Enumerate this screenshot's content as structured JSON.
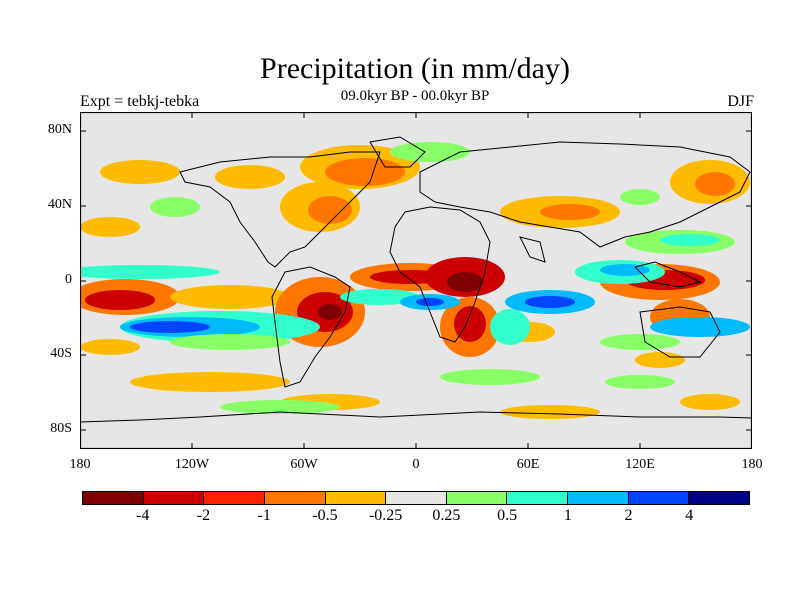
{
  "title": "Precipitation (in mm/day)",
  "subtitle": "09.0kyr BP - 00.0kyr BP",
  "experiment_label": "Expt = tebkj-tebka",
  "season_label": "DJF",
  "y_ticks": [
    "80N",
    "40N",
    "0",
    "40S",
    "80S"
  ],
  "x_ticks": [
    "180",
    "120W",
    "60W",
    "0",
    "60E",
    "120E",
    "180"
  ],
  "colorbar": {
    "colors": [
      "#7f0000",
      "#cc0000",
      "#ff2200",
      "#ff7700",
      "#ffbb00",
      "#e6e6e6",
      "#88ff66",
      "#33ffcc",
      "#00bbff",
      "#0044ff",
      "#000088"
    ],
    "labels": [
      "-4",
      "-2",
      "-1",
      "-0.5",
      "-0.25",
      "0.25",
      "0.5",
      "1",
      "2",
      "4"
    ]
  },
  "chart_data": {
    "type": "heatmap",
    "title": "Precipitation (in mm/day)",
    "subtitle": "09.0kyr BP - 00.0kyr BP",
    "x_range_deg": [
      -180,
      180
    ],
    "y_range_deg": [
      -90,
      90
    ],
    "contour_levels": [
      -4,
      -2,
      -1,
      -0.5,
      -0.25,
      0.25,
      0.5,
      1,
      2,
      4
    ],
    "season": "DJF"
  }
}
